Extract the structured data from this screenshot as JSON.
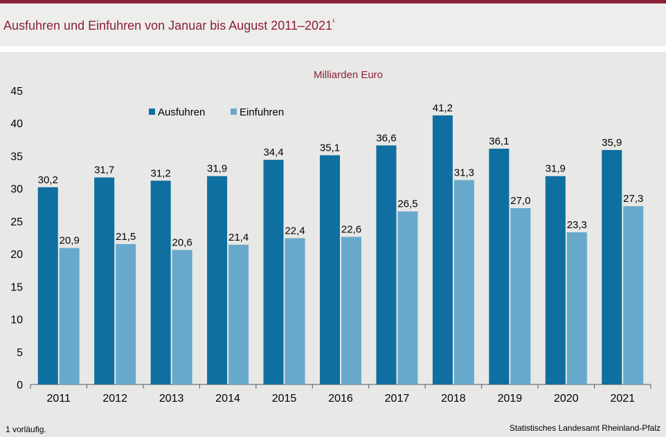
{
  "title": "Ausfuhren und Einfuhren von Januar bis August 2011–2021",
  "title_footnote_mark": "¹",
  "footnote": "1 vorläufig.",
  "source": "Statistisches Landesamt Rheinland-Pfalz",
  "colors": {
    "brand": "#8b1f37",
    "ausfuhren": "#0e6fa0",
    "einfuhren": "#68a9cb"
  },
  "chart_data": {
    "type": "bar",
    "unit_label": "Milliarden Euro",
    "categories": [
      "2011",
      "2012",
      "2013",
      "2014",
      "2015",
      "2016",
      "2017",
      "2018",
      "2019",
      "2020",
      "2021"
    ],
    "series": [
      {
        "name": "Ausfuhren",
        "values": [
          30.2,
          31.7,
          31.2,
          31.9,
          34.4,
          35.1,
          36.6,
          41.2,
          36.1,
          31.9,
          35.9
        ],
        "labels": [
          "30,2",
          "31,7",
          "31,2",
          "31,9",
          "34,4",
          "35,1",
          "36,6",
          "41,2",
          "36,1",
          "31,9",
          "35,9"
        ]
      },
      {
        "name": "Einfuhren",
        "values": [
          20.9,
          21.5,
          20.6,
          21.4,
          22.4,
          22.6,
          26.5,
          31.3,
          27.0,
          23.3,
          27.3
        ],
        "labels": [
          "20,9",
          "21,5",
          "20,6",
          "21,4",
          "22,4",
          "22,6",
          "26,5",
          "31,3",
          "27,0",
          "23,3",
          "27,3"
        ]
      }
    ],
    "ylim": [
      0,
      45
    ],
    "yticks": [
      0,
      5,
      10,
      15,
      20,
      25,
      30,
      35,
      40,
      45
    ],
    "legend_position": "top-left",
    "grid": false
  }
}
